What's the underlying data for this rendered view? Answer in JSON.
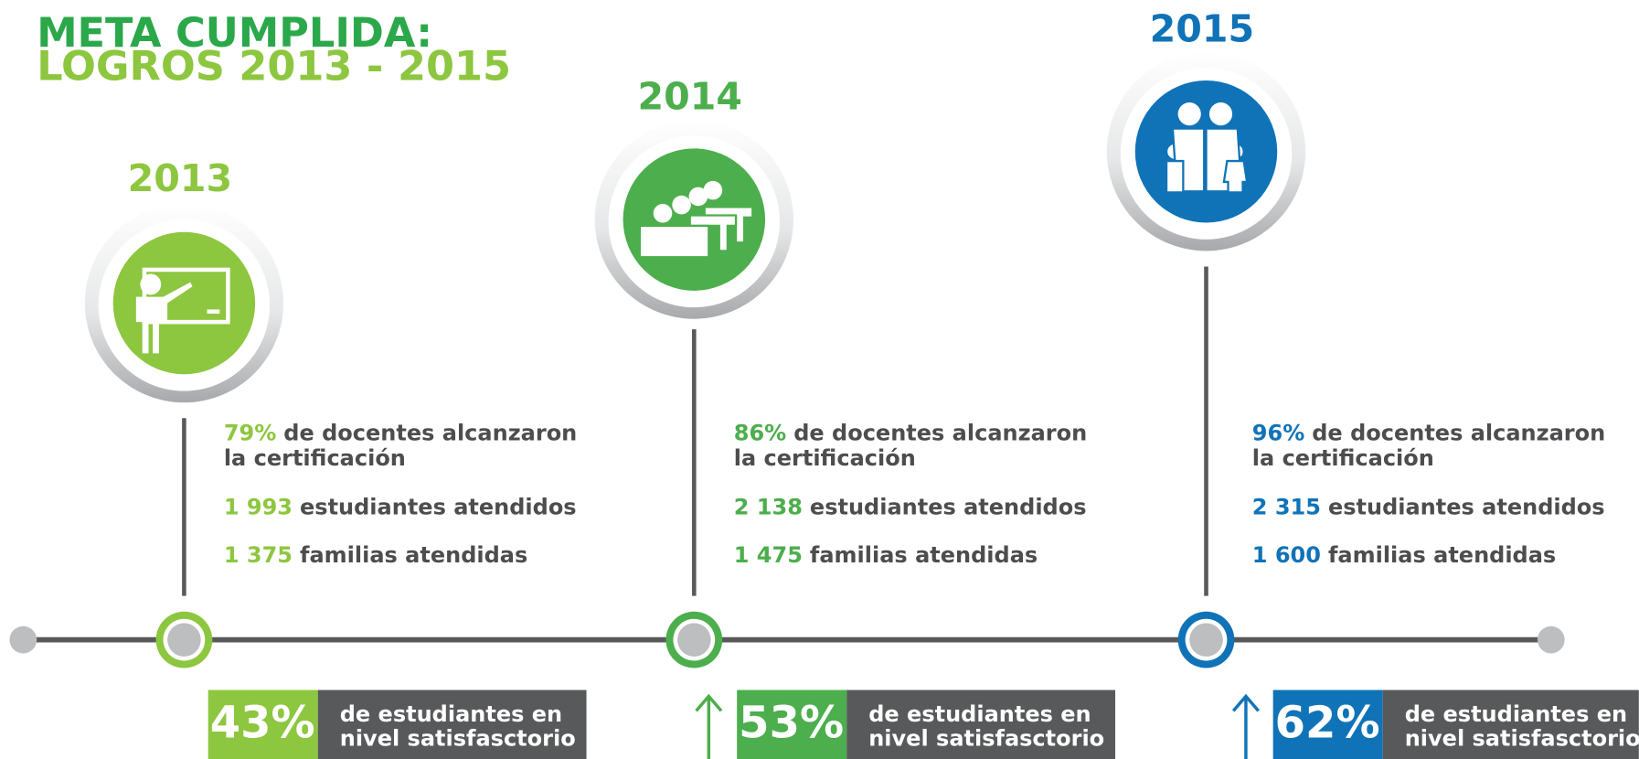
{
  "header": {
    "title": [
      "META CUMPLIDA:",
      "LOGROS 2013 - 2015"
    ]
  },
  "milestones": [
    {
      "year": "2013",
      "stats": [
        {
          "value": "79%",
          "text": [
            "de docentes alcanzaron",
            "la certificación"
          ]
        },
        {
          "value": "1 993",
          "text": [
            "estudiantes atendidos"
          ]
        },
        {
          "value": "1 375",
          "text": [
            "familias atendidas"
          ]
        }
      ],
      "result": {
        "value": "43%",
        "text": [
          "de estudiantes en",
          "nivel satisfasctorio"
        ]
      }
    },
    {
      "year": "2014",
      "stats": [
        {
          "value": "86%",
          "text": [
            "de docentes alcanzaron",
            "la certificación"
          ]
        },
        {
          "value": "2 138",
          "text": [
            "estudiantes atendidos"
          ]
        },
        {
          "value": "1 475",
          "text": [
            "familias atendidas"
          ]
        }
      ],
      "result": {
        "value": "53%",
        "text": [
          "de estudiantes en",
          "nivel satisfasctorio"
        ]
      }
    },
    {
      "year": "2015",
      "stats": [
        {
          "value": "96%",
          "text": [
            "de docentes alcanzaron",
            "la certificación"
          ]
        },
        {
          "value": "2 315",
          "text": [
            "estudiantes atendidos"
          ]
        },
        {
          "value": "1 600",
          "text": [
            "familias atendidas"
          ]
        }
      ],
      "result": {
        "value": "62%",
        "text": [
          "de estudiantes en",
          "nivel satisfasctorio"
        ]
      }
    }
  ]
}
